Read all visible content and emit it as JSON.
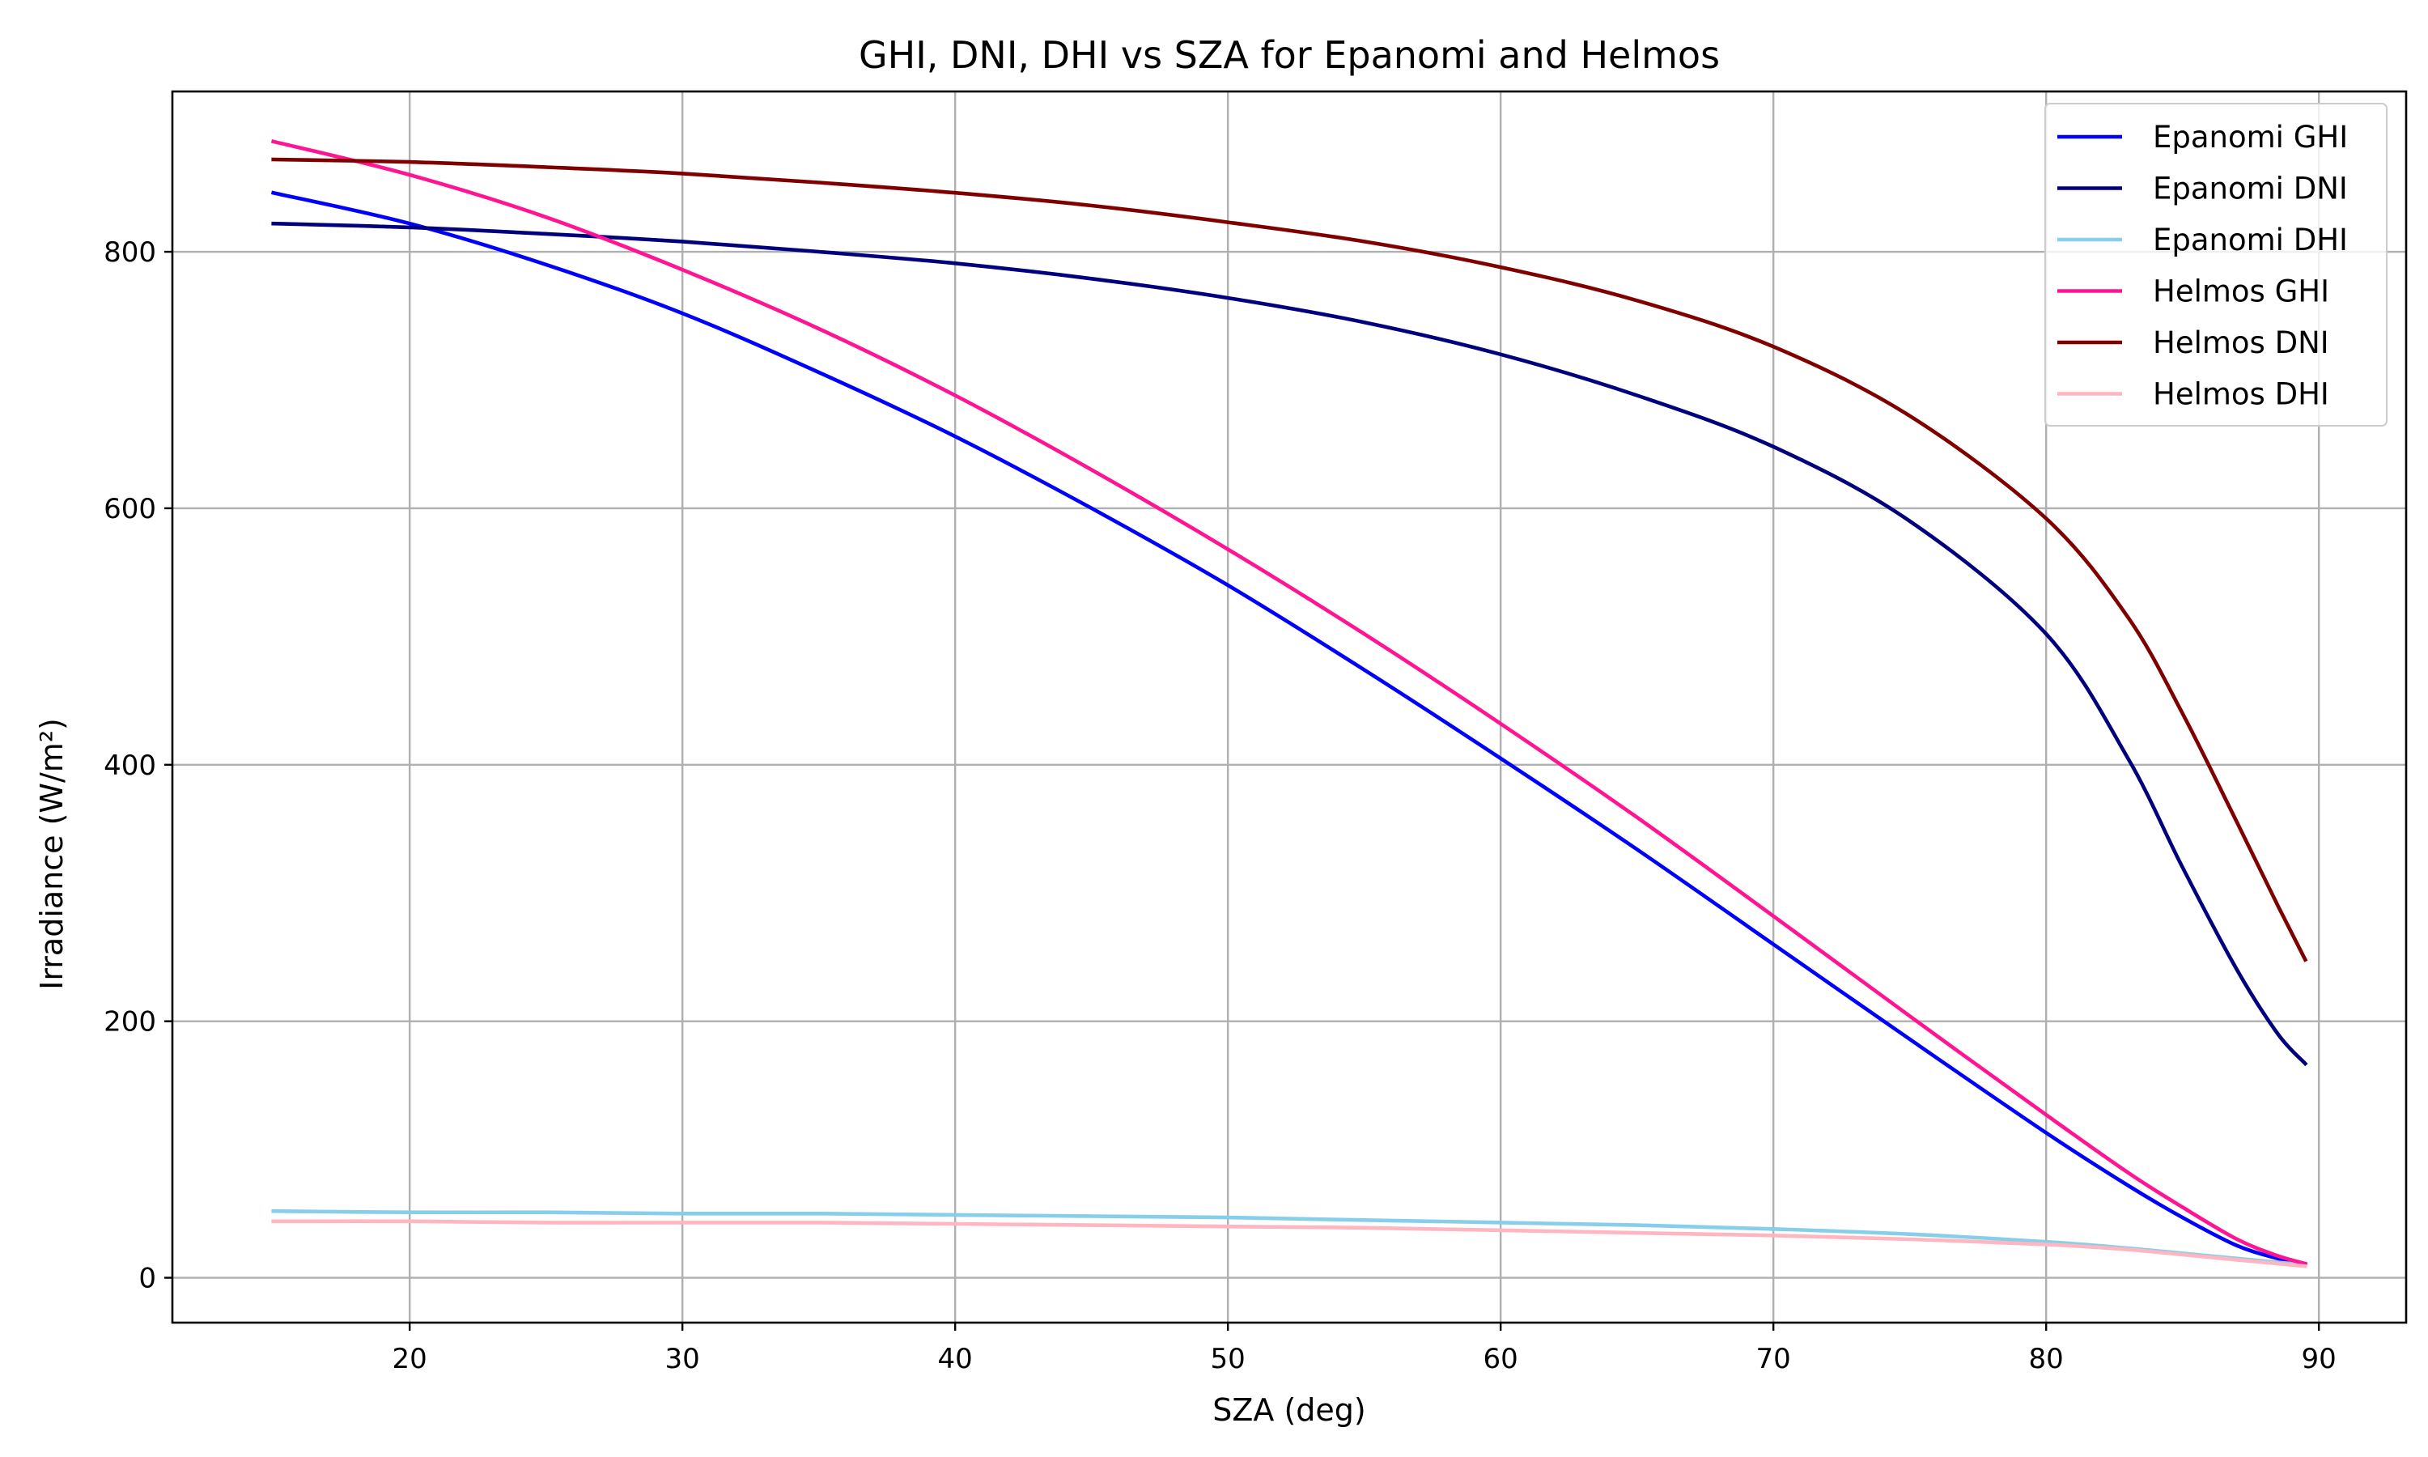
{
  "chart_data": {
    "type": "line",
    "title": "GHI, DNI, DHI vs SZA for Epanomi and Helmos",
    "xlabel": "SZA (deg)",
    "ylabel": "Irradiance (W/m²)",
    "xlim": [
      11.3,
      93.2
    ],
    "ylim": [
      -35,
      925
    ],
    "xticks": [
      20,
      30,
      40,
      50,
      60,
      70,
      80,
      90
    ],
    "yticks": [
      0,
      200,
      400,
      600,
      800
    ],
    "grid": true,
    "legend_position": "top-right",
    "x": [
      15,
      20,
      25,
      30,
      35,
      40,
      45,
      50,
      55,
      60,
      65,
      70,
      75,
      80,
      83,
      85,
      87,
      88.5,
      89.5
    ],
    "series": [
      {
        "name": "Epanomi GHI",
        "color": "#0000ff",
        "values": [
          846,
          822,
          790,
          752,
          706,
          656,
          600,
          540,
          474,
          405,
          334,
          260,
          186,
          113,
          72,
          47,
          25,
          15,
          10
        ]
      },
      {
        "name": "Epanomi DNI",
        "color": "#00007f",
        "values": [
          822,
          819,
          814,
          808,
          800,
          791,
          779,
          764,
          745,
          720,
          688,
          648,
          590,
          502,
          405,
          320,
          240,
          190,
          167
        ]
      },
      {
        "name": "Epanomi DHI",
        "color": "#87ceeb",
        "values": [
          52,
          51,
          51,
          50,
          50,
          49,
          48,
          47,
          45,
          43,
          41,
          38,
          34,
          28,
          23,
          19,
          15,
          12,
          10
        ]
      },
      {
        "name": "Helmos GHI",
        "color": "#ff1493",
        "values": [
          886,
          860,
          827,
          786,
          740,
          688,
          630,
          568,
          502,
          432,
          359,
          282,
          204,
          127,
          82,
          55,
          30,
          17,
          11
        ]
      },
      {
        "name": "Helmos DNI",
        "color": "#800000",
        "values": [
          872,
          870,
          866,
          861,
          854,
          846,
          836,
          823,
          808,
          788,
          762,
          726,
          672,
          592,
          515,
          440,
          355,
          290,
          248
        ]
      },
      {
        "name": "Helmos DHI",
        "color": "#ffb6c1",
        "values": [
          44,
          44,
          43,
          43,
          43,
          42,
          41,
          40,
          39,
          37,
          35,
          33,
          30,
          26,
          22,
          18,
          14,
          11,
          9
        ]
      }
    ]
  }
}
